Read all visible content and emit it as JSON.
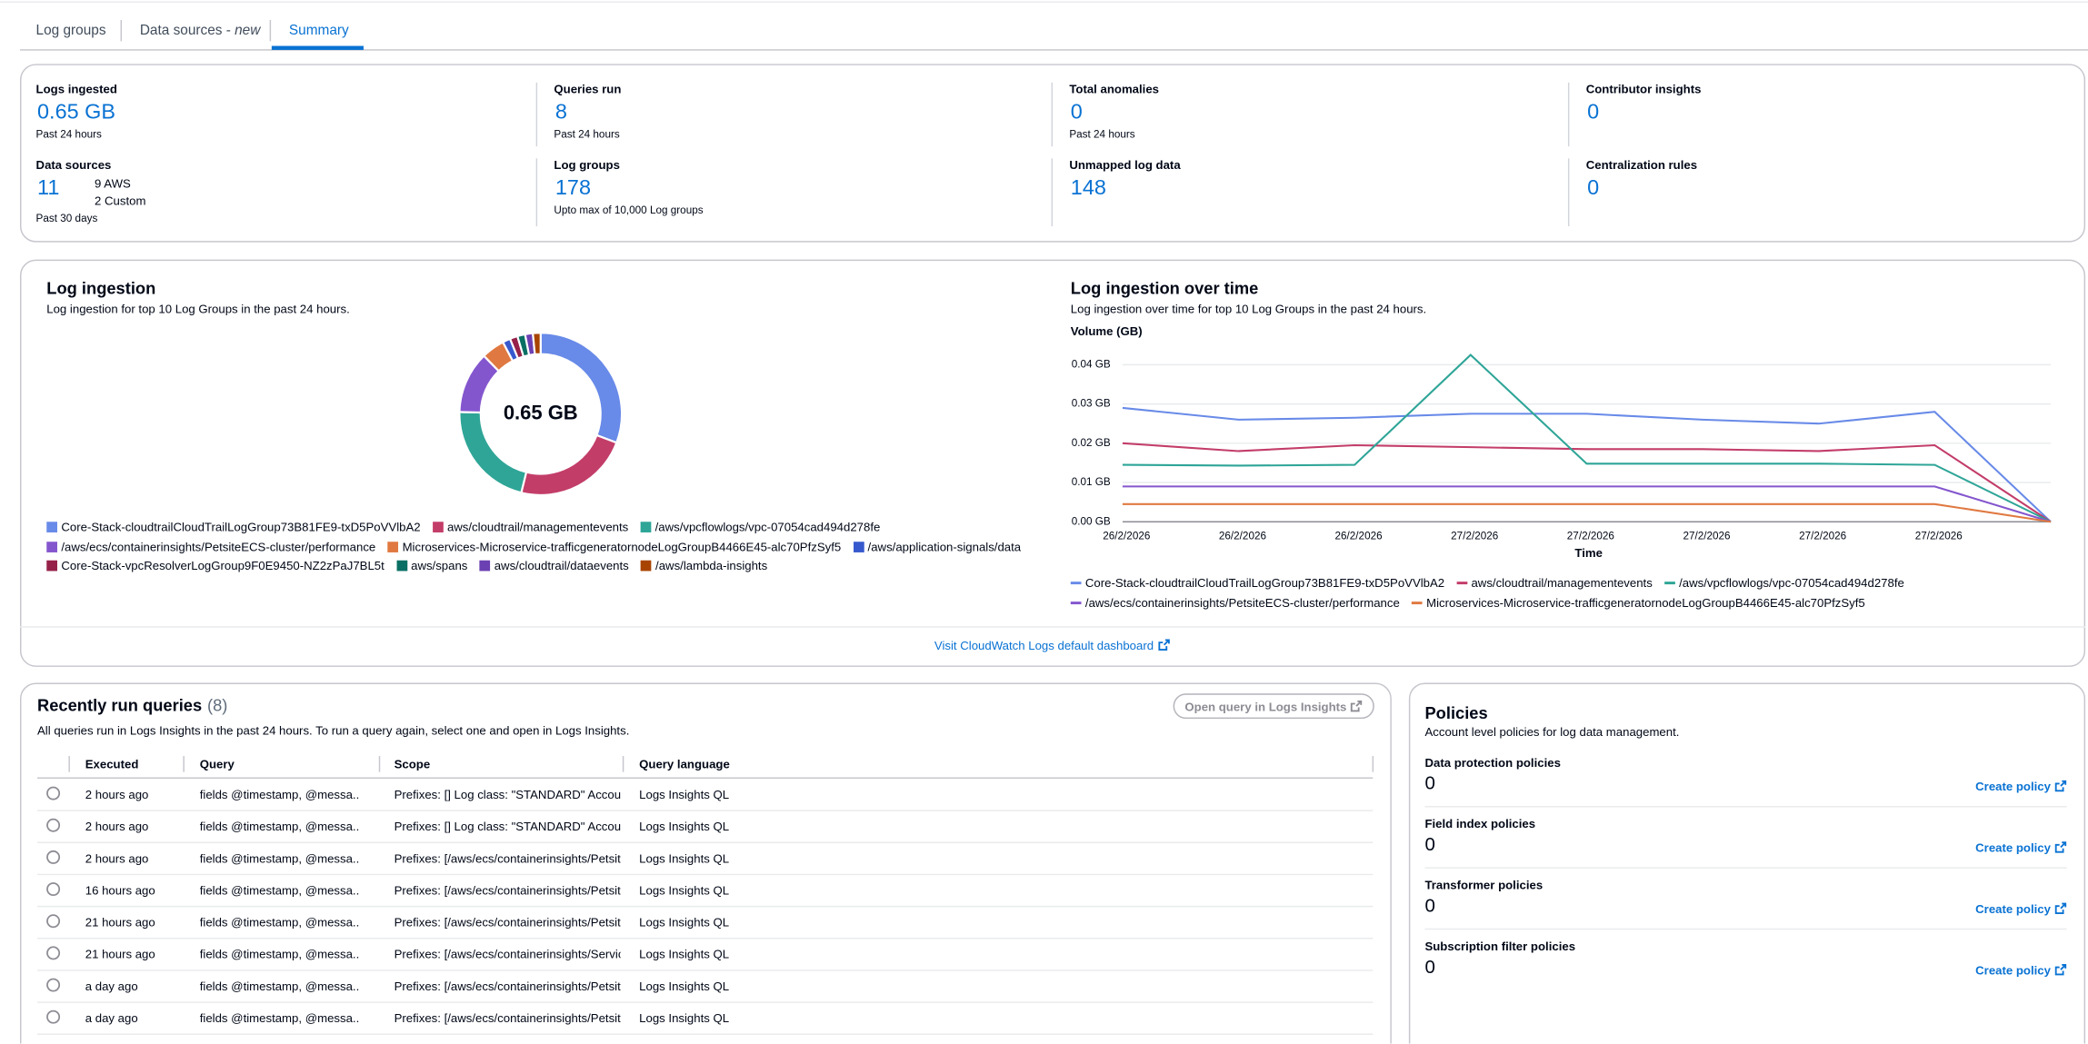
{
  "tabs": [
    {
      "label": "Log groups"
    },
    {
      "label": "Data sources - ",
      "badge": "new"
    },
    {
      "label": "Summary"
    }
  ],
  "summary": {
    "metrics": [
      {
        "label": "Logs ingested",
        "value": "0.65 GB",
        "note": "Past 24 hours"
      },
      {
        "label": "Queries run",
        "value": 8,
        "note": "Past 24 hours"
      },
      {
        "label": "Total anomalies",
        "value": 0,
        "note": "Past 24 hours"
      },
      {
        "label": "Contributor insights",
        "value": 0
      },
      {
        "label": "Data sources",
        "value": 11,
        "breakdown": [
          "9 AWS",
          "2 Custom"
        ],
        "note": "Past 30 days"
      },
      {
        "label": "Log groups",
        "value": 178,
        "note": "Upto max of 10,000 Log groups"
      },
      {
        "label": "Unmapped log data",
        "value": 148
      },
      {
        "label": "Centralization rules",
        "value": 0
      }
    ]
  },
  "chart_data": [
    {
      "type": "pie",
      "donut": true,
      "title": "Log ingestion",
      "subtitle": "Log ingestion for top 10 Log Groups in the past 24 hours.",
      "center_label": "0.65 GB",
      "categories": [
        "Core-Stack-cloudtrailCloudTrailLogGroup73B81FE9-txD5PoVVlbA2",
        "aws/cloudtrail/managementevents",
        "/aws/vpcflowlogs/vpc-07054cad494d278fe",
        "/aws/ecs/containerinsights/PetsiteECS-cluster/performance",
        "Microservices-Microservice-trafficgeneratornodeLogGroupB4466E45-alc70PfzSyf5",
        "/aws/application-signals/data",
        "Core-Stack-vpcResolverLogGroup9F0E9450-NZ2zPaJ7BL5t",
        "aws/spans",
        "aws/cloudtrail/dataevents",
        "/aws/lambda-insights"
      ],
      "values": [
        0.2,
        0.15,
        0.14,
        0.08,
        0.03,
        0.01,
        0.01,
        0.01,
        0.01,
        0.01
      ],
      "colors": [
        "#688ae8",
        "#c33d69",
        "#2ea597",
        "#8456ce",
        "#e07941",
        "#3759ce",
        "#962249",
        "#096f64",
        "#6b40b2",
        "#a84401"
      ]
    },
    {
      "type": "line",
      "title": "Log ingestion over time",
      "subtitle": "Log ingestion over time for top 10 Log Groups in the past 24 hours.",
      "y_label": "Volume (GB)",
      "x_label": "Time",
      "categories": [
        "26/2/2026",
        "26/2/2026",
        "26/2/2026",
        "27/2/2026",
        "27/2/2026",
        "27/2/2026",
        "27/2/2026",
        "27/2/2026",
        null
      ],
      "series": [
        {
          "name": "Core-Stack-cloudtrailCloudTrailLogGroup73B81FE9-txD5PoVVlbA2",
          "color": "#688ae8",
          "values": [
            0.029,
            0.026,
            0.0265,
            0.0275,
            0.0275,
            0.026,
            0.025,
            0.028,
            0
          ]
        },
        {
          "name": "aws/cloudtrail/managementevents",
          "color": "#c33d69",
          "values": [
            0.02,
            0.018,
            0.0195,
            0.019,
            0.0185,
            0.0185,
            0.018,
            0.0195,
            0
          ]
        },
        {
          "name": "/aws/vpcflowlogs/vpc-07054cad494d278fe",
          "color": "#2ea597",
          "values": [
            0.0145,
            0.0143,
            0.0145,
            0.0425,
            0.0148,
            0.0148,
            0.0148,
            0.0145,
            0
          ]
        },
        {
          "name": "/aws/ecs/containerinsights/PetsiteECS-cluster/performance",
          "color": "#8456ce",
          "values": [
            0.009,
            0.009,
            0.009,
            0.009,
            0.009,
            0.009,
            0.009,
            0.009,
            0
          ]
        },
        {
          "name": "Microservices-Microservice-trafficgeneratornodeLogGroupB4466E45-alc70PfzSyf5",
          "color": "#e07941",
          "values": [
            0.0045,
            0.0045,
            0.0045,
            0.0045,
            0.0045,
            0.0045,
            0.0045,
            0.0045,
            0
          ]
        }
      ],
      "ylim": [
        0,
        0.045
      ],
      "yticks": [
        {
          "value": 0,
          "label": "0.00 GB"
        },
        {
          "value": 0.01,
          "label": "0.01 GB"
        },
        {
          "value": 0.02,
          "label": "0.02 GB"
        },
        {
          "value": 0.03,
          "label": "0.03 GB"
        },
        {
          "value": 0.04,
          "label": "0.04 GB"
        }
      ],
      "grid": true
    }
  ],
  "dashboard_link": "Visit CloudWatch Logs default dashboard",
  "queries": {
    "title": "Recently run queries",
    "count": "(8)",
    "button": "Open query in Logs Insights",
    "subtitle": "All queries run in Logs Insights in the past 24 hours. To run a query again, select one and open in Logs Insights.",
    "columns": [
      "Executed",
      "Query",
      "Scope",
      "Query language"
    ],
    "rows": [
      [
        "2 hours ago",
        "fields @timestamp, @messa...",
        "Prefixes: [] Log class: \"STANDARD\" Account(s",
        "Logs Insights QL"
      ],
      [
        "2 hours ago",
        "fields @timestamp, @messa...",
        "Prefixes: [] Log class: \"STANDARD\" Account(s",
        "Logs Insights QL"
      ],
      [
        "2 hours ago",
        "fields @timestamp, @messa...",
        "Prefixes: [/aws/ecs/containerinsights/Petsite",
        "Logs Insights QL"
      ],
      [
        "16 hours ago",
        "fields @timestamp, @messa...",
        "Prefixes: [/aws/ecs/containerinsights/Petsite",
        "Logs Insights QL"
      ],
      [
        "21 hours ago",
        "fields @timestamp, @messa...",
        "Prefixes: [/aws/ecs/containerinsights/Petsite",
        "Logs Insights QL"
      ],
      [
        "21 hours ago",
        "fields @timestamp, @messa...",
        "Prefixes: [/aws/ecs/containerinsights/Servic",
        "Logs Insights QL"
      ],
      [
        "a day ago",
        "fields @timestamp, @messa...",
        "Prefixes: [/aws/ecs/containerinsights/Petsite",
        "Logs Insights QL"
      ],
      [
        "a day ago",
        "fields @timestamp, @messa...",
        "Prefixes: [/aws/ecs/containerinsights/Petsite",
        "Logs Insights QL"
      ]
    ]
  },
  "policies": {
    "title": "Policies",
    "subtitle": "Account level policies for log data management.",
    "items": [
      {
        "label": "Data protection policies",
        "value": 0,
        "action": "Create policy"
      },
      {
        "label": "Field index policies",
        "value": 0,
        "action": "Create policy"
      },
      {
        "label": "Transformer policies",
        "value": 0,
        "action": "Create policy"
      },
      {
        "label": "Subscription filter policies",
        "value": 0,
        "action": "Create policy"
      }
    ]
  }
}
